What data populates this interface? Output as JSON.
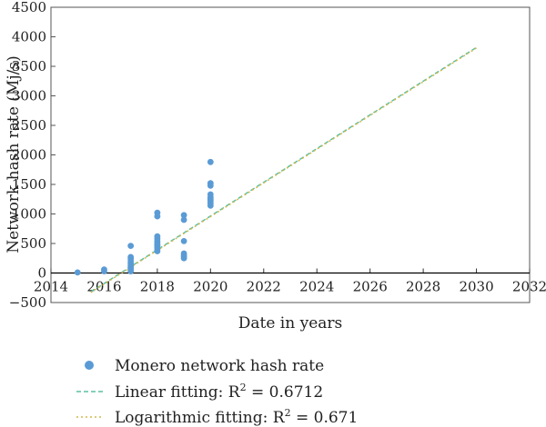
{
  "chart_data": {
    "type": "scatter",
    "xlabel": "Date in years",
    "ylabel": "Network hash rate (Mj/s)",
    "xlim": [
      2014,
      2032
    ],
    "ylim": [
      -500,
      4500
    ],
    "xticks": [
      2014,
      2016,
      2018,
      2020,
      2022,
      2024,
      2026,
      2028,
      2030,
      2032
    ],
    "yticks": [
      -500,
      0,
      500,
      1000,
      1500,
      2000,
      2500,
      3000,
      3500,
      4000,
      4500
    ],
    "grid": false,
    "legend_position": "bottom",
    "series": [
      {
        "name": "Monero network hash rate",
        "kind": "scatter",
        "color": "#5b9bd5",
        "x": [
          2015,
          2016,
          2016,
          2017,
          2017,
          2017,
          2017,
          2017,
          2017,
          2017,
          2017,
          2017,
          2018,
          2018,
          2018,
          2018,
          2018,
          2018,
          2018,
          2018,
          2018,
          2018,
          2018,
          2019,
          2019,
          2019,
          2019,
          2019,
          2019,
          2019,
          2020,
          2020,
          2020,
          2020,
          2020,
          2020,
          2020,
          2020,
          2020
        ],
        "y": [
          10,
          30,
          60,
          460,
          270,
          240,
          200,
          160,
          120,
          90,
          60,
          30,
          1020,
          960,
          620,
          580,
          540,
          510,
          480,
          460,
          430,
          400,
          370,
          980,
          900,
          540,
          330,
          300,
          280,
          250,
          1880,
          1520,
          1480,
          1330,
          1280,
          1250,
          1220,
          1180,
          1140
        ]
      },
      {
        "name": "Linear fitting: R",
        "name_sup": "2",
        "name_value": " = 0.6712",
        "kind": "line",
        "color": "#5bbfa0",
        "dash": "5,3",
        "x": [
          2015.5,
          2030
        ],
        "y": [
          -320,
          3820
        ]
      },
      {
        "name": "Logarithmic fitting: R",
        "name_sup": "2",
        "name_value": " = 0.671",
        "kind": "line",
        "color": "#d4b84a",
        "dash": "2,3",
        "x": [
          2015.5,
          2030
        ],
        "y": [
          -330,
          3810
        ]
      }
    ]
  }
}
